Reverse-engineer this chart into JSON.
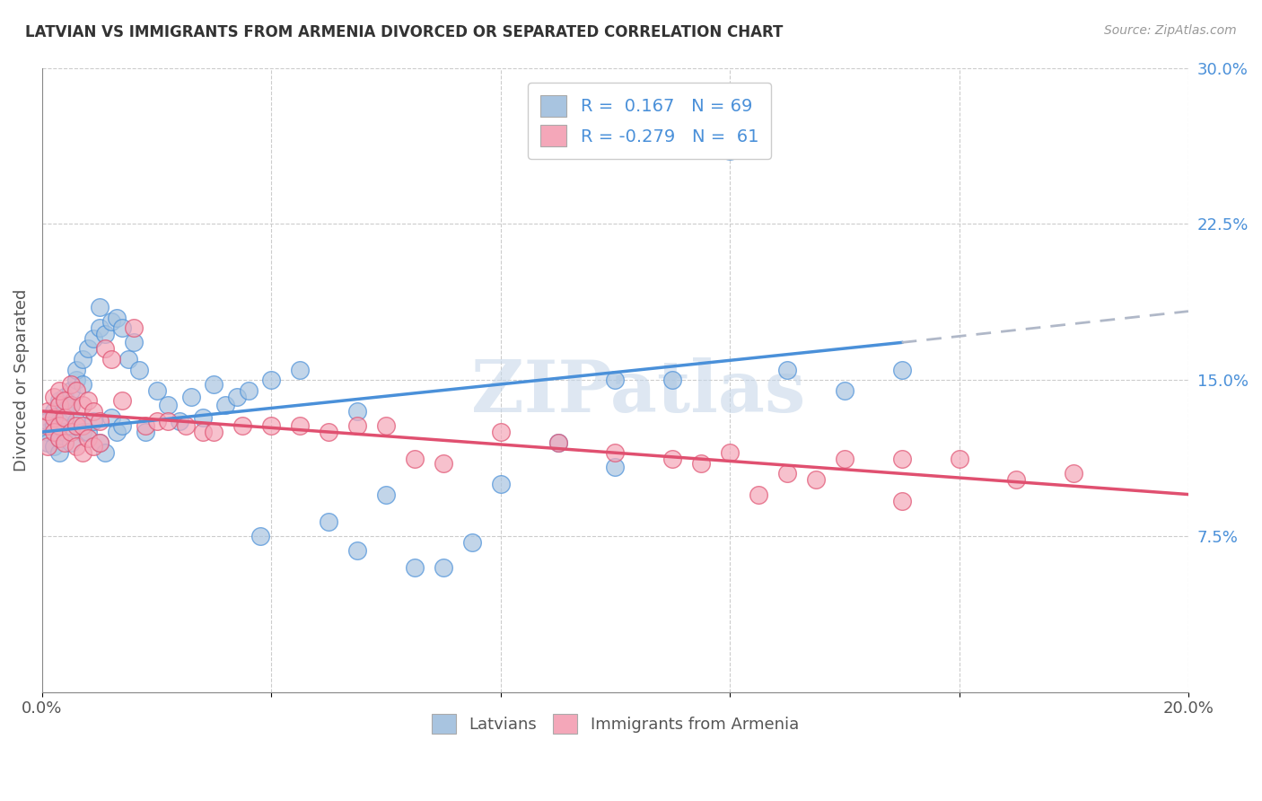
{
  "title": "LATVIAN VS IMMIGRANTS FROM ARMENIA DIVORCED OR SEPARATED CORRELATION CHART",
  "source": "Source: ZipAtlas.com",
  "ylabel": "Divorced or Separated",
  "xlabel": "",
  "watermark": "ZIPatlas",
  "xlim": [
    0.0,
    0.2
  ],
  "ylim": [
    0.0,
    0.3
  ],
  "xticks": [
    0.0,
    0.04,
    0.08,
    0.12,
    0.16,
    0.2
  ],
  "yticks_right": [
    0.075,
    0.15,
    0.225,
    0.3
  ],
  "ytick_labels_right": [
    "7.5%",
    "15.0%",
    "22.5%",
    "30.0%"
  ],
  "xtick_labels": [
    "0.0%",
    "",
    "",
    "",
    "",
    "20.0%"
  ],
  "latvian_color": "#a8c4e0",
  "armenia_color": "#f4a7b9",
  "latvian_line_color": "#4a90d9",
  "armenia_line_color": "#e05070",
  "trendline_ext_color": "#b0b8c8",
  "R_latvian": 0.167,
  "N_latvian": 69,
  "R_armenia": -0.279,
  "N_armenia": 61,
  "latvian_scatter_x": [
    0.001,
    0.001,
    0.001,
    0.002,
    0.002,
    0.002,
    0.003,
    0.003,
    0.003,
    0.003,
    0.004,
    0.004,
    0.004,
    0.005,
    0.005,
    0.005,
    0.006,
    0.006,
    0.006,
    0.007,
    0.007,
    0.007,
    0.008,
    0.008,
    0.009,
    0.009,
    0.01,
    0.01,
    0.01,
    0.011,
    0.011,
    0.012,
    0.012,
    0.013,
    0.013,
    0.014,
    0.014,
    0.015,
    0.016,
    0.017,
    0.018,
    0.02,
    0.022,
    0.024,
    0.026,
    0.028,
    0.03,
    0.032,
    0.034,
    0.036,
    0.04,
    0.045,
    0.05,
    0.055,
    0.06,
    0.065,
    0.07,
    0.08,
    0.09,
    0.1,
    0.11,
    0.12,
    0.13,
    0.14,
    0.15,
    0.1,
    0.075,
    0.055,
    0.038
  ],
  "latvian_scatter_y": [
    0.125,
    0.13,
    0.12,
    0.118,
    0.128,
    0.135,
    0.122,
    0.13,
    0.14,
    0.115,
    0.135,
    0.142,
    0.125,
    0.138,
    0.145,
    0.12,
    0.15,
    0.155,
    0.13,
    0.16,
    0.148,
    0.125,
    0.165,
    0.125,
    0.17,
    0.13,
    0.175,
    0.185,
    0.12,
    0.172,
    0.115,
    0.178,
    0.132,
    0.18,
    0.125,
    0.175,
    0.128,
    0.16,
    0.168,
    0.155,
    0.125,
    0.145,
    0.138,
    0.13,
    0.142,
    0.132,
    0.148,
    0.138,
    0.142,
    0.145,
    0.15,
    0.155,
    0.082,
    0.135,
    0.095,
    0.06,
    0.06,
    0.1,
    0.12,
    0.15,
    0.15,
    0.26,
    0.155,
    0.145,
    0.155,
    0.108,
    0.072,
    0.068,
    0.075
  ],
  "armenia_scatter_x": [
    0.001,
    0.001,
    0.001,
    0.002,
    0.002,
    0.002,
    0.003,
    0.003,
    0.003,
    0.003,
    0.004,
    0.004,
    0.004,
    0.005,
    0.005,
    0.005,
    0.006,
    0.006,
    0.006,
    0.007,
    0.007,
    0.007,
    0.008,
    0.008,
    0.009,
    0.009,
    0.01,
    0.01,
    0.011,
    0.012,
    0.014,
    0.016,
    0.018,
    0.02,
    0.022,
    0.025,
    0.028,
    0.03,
    0.035,
    0.04,
    0.045,
    0.05,
    0.055,
    0.06,
    0.065,
    0.07,
    0.08,
    0.09,
    0.1,
    0.11,
    0.12,
    0.13,
    0.14,
    0.15,
    0.16,
    0.17,
    0.18,
    0.115,
    0.125,
    0.135,
    0.15
  ],
  "armenia_scatter_y": [
    0.128,
    0.135,
    0.118,
    0.132,
    0.142,
    0.125,
    0.138,
    0.128,
    0.145,
    0.122,
    0.14,
    0.132,
    0.12,
    0.148,
    0.138,
    0.125,
    0.145,
    0.128,
    0.118,
    0.138,
    0.128,
    0.115,
    0.14,
    0.122,
    0.135,
    0.118,
    0.13,
    0.12,
    0.165,
    0.16,
    0.14,
    0.175,
    0.128,
    0.13,
    0.13,
    0.128,
    0.125,
    0.125,
    0.128,
    0.128,
    0.128,
    0.125,
    0.128,
    0.128,
    0.112,
    0.11,
    0.125,
    0.12,
    0.115,
    0.112,
    0.115,
    0.105,
    0.112,
    0.112,
    0.112,
    0.102,
    0.105,
    0.11,
    0.095,
    0.102,
    0.092
  ],
  "latvian_trendline_x0": 0.0,
  "latvian_trendline_x_solid_end": 0.15,
  "latvian_trendline_x_dash_end": 0.2,
  "latvian_trendline_y0": 0.125,
  "latvian_trendline_y_solid_end": 0.168,
  "latvian_trendline_y_dash_end": 0.183,
  "armenia_trendline_x0": 0.0,
  "armenia_trendline_x1": 0.2,
  "armenia_trendline_y0": 0.135,
  "armenia_trendline_y1": 0.095
}
